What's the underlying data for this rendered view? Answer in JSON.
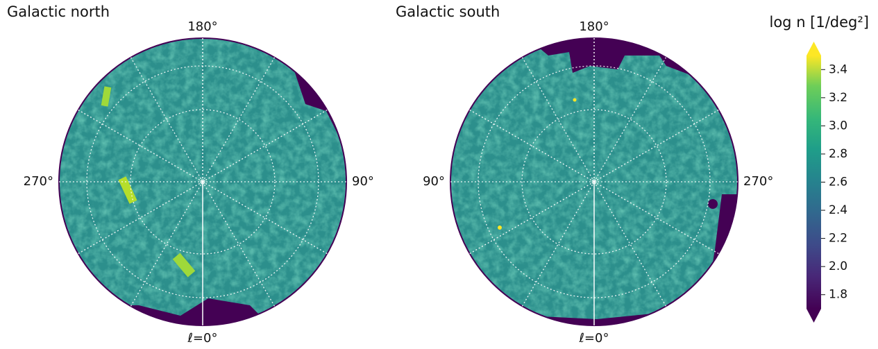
{
  "chart_data": {
    "type": "sky-map",
    "panels": [
      {
        "title": "Galactic north",
        "top": "180°",
        "left": "270°",
        "right": "90°",
        "bottom": "ℓ=0°"
      },
      {
        "title": "Galactic south",
        "top": "180°",
        "left": "90°",
        "right": "270°",
        "bottom": "ℓ=0°"
      }
    ],
    "colorbar": {
      "label": "log n [1/deg²]",
      "lim": [
        1.7,
        3.5
      ],
      "ticks": [
        1.8,
        {
          "value": 2,
          "label": "2.0"
        },
        2.2,
        2.4,
        2.6,
        2.8,
        {
          "value": 3,
          "label": "3.0"
        },
        3.2,
        3.4
      ]
    }
  }
}
